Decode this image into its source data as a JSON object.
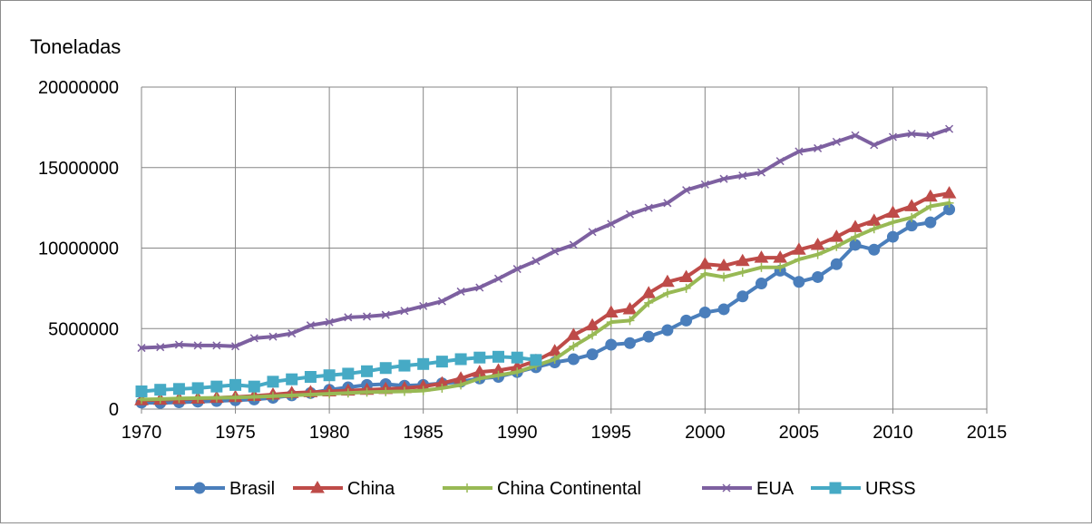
{
  "chart_data": {
    "type": "line",
    "ylabel": "Toneladas",
    "xlim": [
      1970,
      2015
    ],
    "ylim": [
      0,
      20000000
    ],
    "xticks": [
      "1970",
      "1975",
      "1980",
      "1985",
      "1990",
      "1995",
      "2000",
      "2005",
      "2010",
      "2015"
    ],
    "yticks": [
      "0",
      "5000000",
      "10000000",
      "15000000",
      "20000000"
    ],
    "grid": true,
    "legend_position": "bottom",
    "x": [
      1970,
      1971,
      1972,
      1973,
      1974,
      1975,
      1976,
      1977,
      1978,
      1979,
      1980,
      1981,
      1982,
      1983,
      1984,
      1985,
      1986,
      1987,
      1988,
      1989,
      1990,
      1991,
      1992,
      1993,
      1994,
      1995,
      1996,
      1997,
      1998,
      1999,
      2000,
      2001,
      2002,
      2003,
      2004,
      2005,
      2006,
      2007,
      2008,
      2009,
      2010,
      2011,
      2012,
      2013
    ],
    "series": [
      {
        "name": "Brasil",
        "color": "#4a7ebb",
        "marker": "circle",
        "values": [
          400000,
          380000,
          420000,
          460000,
          500000,
          550000,
          600000,
          700000,
          850000,
          1000000,
          1200000,
          1350000,
          1500000,
          1550000,
          1450000,
          1500000,
          1600000,
          1700000,
          1900000,
          2000000,
          2300000,
          2600000,
          2900000,
          3100000,
          3400000,
          4000000,
          4100000,
          4500000,
          4900000,
          5500000,
          6000000,
          6200000,
          7000000,
          7800000,
          8600000,
          7900000,
          8200000,
          9000000,
          10200000,
          9900000,
          10700000,
          11400000,
          11600000,
          12400000
        ]
      },
      {
        "name": "China",
        "color": "#be4b48",
        "marker": "triangle",
        "values": [
          550000,
          580000,
          620000,
          650000,
          700000,
          750000,
          820000,
          900000,
          1000000,
          1050000,
          1100000,
          1150000,
          1200000,
          1250000,
          1300000,
          1400000,
          1600000,
          1900000,
          2300000,
          2400000,
          2600000,
          3000000,
          3600000,
          4600000,
          5200000,
          6000000,
          6200000,
          7200000,
          7900000,
          8200000,
          9000000,
          8900000,
          9200000,
          9400000,
          9400000,
          9900000,
          10200000,
          10700000,
          11300000,
          11700000,
          12200000,
          12600000,
          13200000,
          13400000
        ]
      },
      {
        "name": "China Continental",
        "color": "#98b954",
        "marker": "plus",
        "values": [
          600000,
          620000,
          660000,
          680000,
          700000,
          720000,
          760000,
          800000,
          850000,
          900000,
          950000,
          1000000,
          1050000,
          1080000,
          1100000,
          1150000,
          1300000,
          1500000,
          1900000,
          2100000,
          2300000,
          2700000,
          3100000,
          3900000,
          4600000,
          5400000,
          5500000,
          6600000,
          7200000,
          7500000,
          8400000,
          8200000,
          8500000,
          8800000,
          8800000,
          9300000,
          9600000,
          10100000,
          10700000,
          11200000,
          11600000,
          11900000,
          12600000,
          12800000
        ]
      },
      {
        "name": "EUA",
        "color": "#7d60a0",
        "marker": "x",
        "values": [
          3800000,
          3850000,
          4000000,
          3950000,
          3950000,
          3900000,
          4400000,
          4500000,
          4700000,
          5200000,
          5400000,
          5700000,
          5750000,
          5850000,
          6100000,
          6400000,
          6700000,
          7300000,
          7550000,
          8100000,
          8700000,
          9200000,
          9800000,
          10200000,
          11000000,
          11500000,
          12100000,
          12500000,
          12800000,
          13600000,
          13950000,
          14300000,
          14500000,
          14700000,
          15400000,
          16000000,
          16200000,
          16600000,
          17000000,
          16400000,
          16900000,
          17100000,
          17000000,
          17400000
        ]
      },
      {
        "name": "URSS",
        "color": "#46aac5",
        "marker": "square",
        "values": [
          1100000,
          1200000,
          1250000,
          1300000,
          1400000,
          1500000,
          1400000,
          1700000,
          1850000,
          2000000,
          2100000,
          2200000,
          2350000,
          2550000,
          2700000,
          2800000,
          2950000,
          3100000,
          3200000,
          3250000,
          3200000,
          3050000,
          null,
          null,
          null,
          null,
          null,
          null,
          null,
          null,
          null,
          null,
          null,
          null,
          null,
          null,
          null,
          null,
          null,
          null,
          null,
          null,
          null,
          null
        ]
      }
    ]
  }
}
